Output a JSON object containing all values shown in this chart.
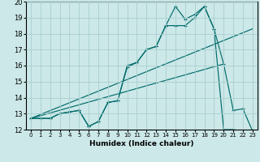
{
  "xlabel": "Humidex (Indice chaleur)",
  "xlim": [
    -0.5,
    23.5
  ],
  "ylim": [
    12,
    20
  ],
  "xticks": [
    0,
    1,
    2,
    3,
    4,
    5,
    6,
    7,
    8,
    9,
    10,
    11,
    12,
    13,
    14,
    15,
    16,
    17,
    18,
    19,
    20,
    21,
    22,
    23
  ],
  "yticks": [
    12,
    13,
    14,
    15,
    16,
    17,
    18,
    19,
    20
  ],
  "bg_color": "#cce8e8",
  "grid_color": "#aacece",
  "line_color": "#006b6b",
  "line1_x": [
    0,
    1,
    2,
    3,
    4,
    5,
    6,
    7,
    8,
    9,
    10,
    11,
    12,
    13,
    14,
    15,
    16,
    17,
    18,
    19,
    20,
    21,
    22,
    23
  ],
  "line1_y": [
    12.7,
    12.7,
    12.7,
    13.0,
    13.1,
    13.2,
    12.2,
    12.5,
    13.7,
    13.8,
    16.0,
    16.2,
    17.0,
    17.2,
    18.5,
    18.5,
    18.5,
    19.0,
    19.7,
    18.3,
    12.0,
    12.0,
    11.9,
    11.9
  ],
  "line2_x": [
    0,
    1,
    2,
    3,
    4,
    5,
    6,
    7,
    8,
    9,
    10,
    11,
    12,
    13,
    14,
    15,
    16,
    17,
    18,
    19,
    20,
    21,
    22,
    23
  ],
  "line2_y": [
    12.7,
    12.7,
    12.7,
    13.0,
    13.1,
    13.2,
    12.2,
    12.5,
    13.7,
    13.8,
    15.9,
    16.2,
    17.0,
    17.2,
    18.5,
    19.7,
    18.9,
    19.2,
    19.7,
    18.3,
    16.1,
    13.2,
    13.3,
    11.9
  ],
  "line3_x": [
    0,
    23
  ],
  "line3_y": [
    12.7,
    18.3
  ],
  "line4_x": [
    0,
    20
  ],
  "line4_y": [
    12.7,
    16.1
  ]
}
